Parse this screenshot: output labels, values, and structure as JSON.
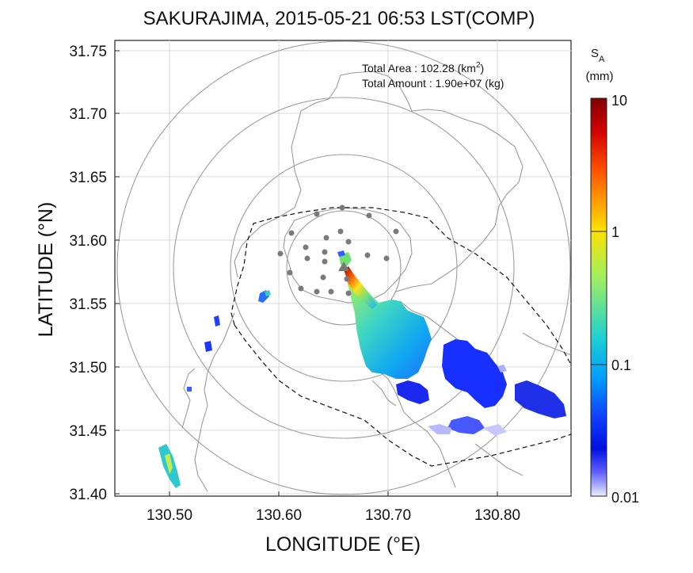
{
  "title": "SAKURAJIMA, 2015-05-21 06:53 LST(COMP)",
  "xlabel": "LONGITUDE (°E)",
  "ylabel": "LATITUDE (°N)",
  "x_ticks": [
    "130.50",
    "130.60",
    "130.70",
    "130.80"
  ],
  "y_ticks": [
    "31.75",
    "31.70",
    "31.65",
    "31.60",
    "31.55",
    "31.50",
    "31.45",
    "31.40"
  ],
  "info": {
    "area_label": "Total Area   : 102.28 (km",
    "area_sup": "2",
    "area_close": ")",
    "amount_label": "Total Amount : 1.90e+07 (kg)"
  },
  "colorbar": {
    "symbol": "S",
    "symbol_sub": "A",
    "unit": "(mm)",
    "ticks": [
      "10",
      "1",
      "0.1",
      "0.01"
    ],
    "stops": [
      "#800000",
      "#ff1a00",
      "#ff9900",
      "#ffff00",
      "#88ee55",
      "#20d8c8",
      "#00a8ff",
      "#1060ff",
      "#0010ee",
      "#7070ff",
      "#e8e8ff"
    ]
  },
  "map": {
    "extent": {
      "lon": [
        130.45,
        130.865
      ],
      "lat": [
        31.397,
        31.762
      ]
    },
    "range_ring_center": [
      130.66,
      31.577
    ]
  }
}
